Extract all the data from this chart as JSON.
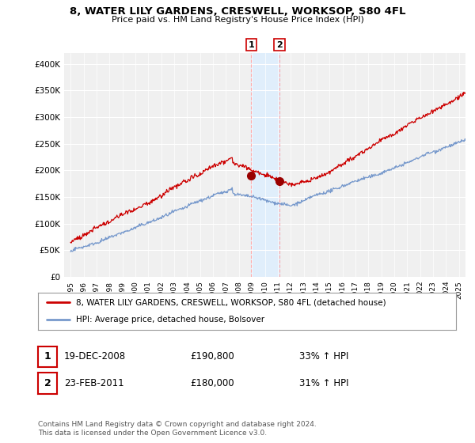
{
  "title": "8, WATER LILY GARDENS, CRESWELL, WORKSOP, S80 4FL",
  "subtitle": "Price paid vs. HM Land Registry's House Price Index (HPI)",
  "ylabel_ticks": [
    "£0",
    "£50K",
    "£100K",
    "£150K",
    "£200K",
    "£250K",
    "£300K",
    "£350K",
    "£400K"
  ],
  "ytick_values": [
    0,
    50000,
    100000,
    150000,
    200000,
    250000,
    300000,
    350000,
    400000
  ],
  "ylim": [
    0,
    420000
  ],
  "xlim_start": 1994.5,
  "xlim_end": 2025.5,
  "sale1": {
    "date": "19-DEC-2008",
    "year": 2008.96,
    "price": 190800,
    "label": "1",
    "pct": "33% ↑ HPI"
  },
  "sale2": {
    "date": "23-FEB-2011",
    "year": 2011.14,
    "price": 180000,
    "label": "2",
    "pct": "31% ↑ HPI"
  },
  "highlight_color": "#ddeeff",
  "highlight_alpha": 0.8,
  "dashed_line_color": "#ffaaaa",
  "red_line_color": "#cc0000",
  "blue_line_color": "#7799cc",
  "marker_color": "#990000",
  "legend_label_red": "8, WATER LILY GARDENS, CRESWELL, WORKSOP, S80 4FL (detached house)",
  "legend_label_blue": "HPI: Average price, detached house, Bolsover",
  "footer": "Contains HM Land Registry data © Crown copyright and database right 2024.\nThis data is licensed under the Open Government Licence v3.0.",
  "background_color": "#ffffff",
  "plot_bg_color": "#f0f0f0",
  "grid_color": "#ffffff",
  "seed": 42
}
